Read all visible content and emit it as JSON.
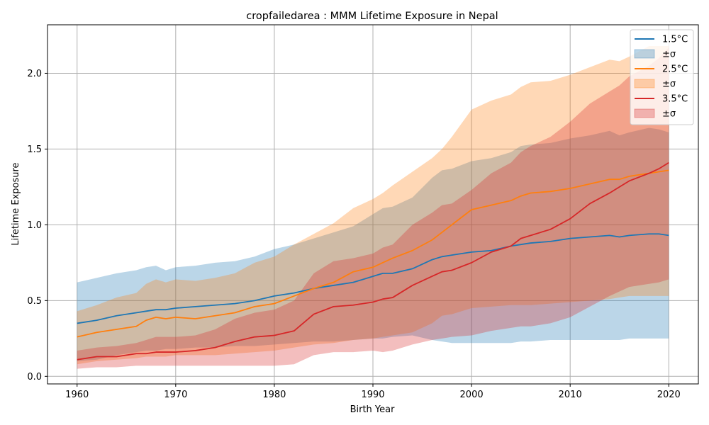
{
  "chart_data": {
    "type": "line",
    "title": "cropfailedarea : MMM Lifetime Exposure in Nepal",
    "xlabel": "Birth Year",
    "ylabel": "Lifetime Exposure",
    "xlim": [
      1957,
      2023
    ],
    "ylim": [
      -0.05,
      2.32
    ],
    "xticks": [
      1960,
      1970,
      1980,
      1990,
      2000,
      2010,
      2020
    ],
    "yticks": [
      0.0,
      0.5,
      1.0,
      1.5,
      2.0
    ],
    "xtick_labels": [
      "1960",
      "1970",
      "1980",
      "1990",
      "2000",
      "2010",
      "2020"
    ],
    "ytick_labels": [
      "0.0",
      "0.5",
      "1.0",
      "1.5",
      "2.0"
    ],
    "grid": true,
    "legend_position": "top-right",
    "x": [
      1960,
      1962,
      1964,
      1966,
      1967,
      1968,
      1969,
      1970,
      1972,
      1974,
      1976,
      1978,
      1980,
      1982,
      1984,
      1986,
      1988,
      1990,
      1991,
      1992,
      1994,
      1996,
      1997,
      1998,
      2000,
      2002,
      2004,
      2005,
      2006,
      2008,
      2010,
      2012,
      2014,
      2015,
      2016,
      2018,
      2019,
      2020
    ],
    "series": [
      {
        "name": "1.5°C",
        "band_label": "±σ",
        "color": "#1f77b4",
        "band_color": "#1f77b4",
        "mean": [
          0.35,
          0.37,
          0.4,
          0.42,
          0.43,
          0.44,
          0.44,
          0.45,
          0.46,
          0.47,
          0.48,
          0.5,
          0.53,
          0.55,
          0.58,
          0.6,
          0.62,
          0.66,
          0.68,
          0.68,
          0.71,
          0.77,
          0.79,
          0.8,
          0.82,
          0.83,
          0.86,
          0.87,
          0.88,
          0.89,
          0.91,
          0.92,
          0.93,
          0.92,
          0.93,
          0.94,
          0.94,
          0.93
        ],
        "upper": [
          0.62,
          0.65,
          0.68,
          0.7,
          0.72,
          0.73,
          0.7,
          0.72,
          0.73,
          0.75,
          0.76,
          0.79,
          0.84,
          0.87,
          0.91,
          0.95,
          0.99,
          1.07,
          1.11,
          1.12,
          1.18,
          1.31,
          1.36,
          1.37,
          1.42,
          1.44,
          1.48,
          1.52,
          1.53,
          1.54,
          1.57,
          1.59,
          1.62,
          1.59,
          1.61,
          1.64,
          1.63,
          1.61
        ],
        "lower": [
          0.1,
          0.11,
          0.14,
          0.16,
          0.17,
          0.17,
          0.18,
          0.18,
          0.19,
          0.19,
          0.2,
          0.2,
          0.21,
          0.22,
          0.23,
          0.23,
          0.24,
          0.25,
          0.25,
          0.26,
          0.27,
          0.24,
          0.23,
          0.22,
          0.22,
          0.22,
          0.22,
          0.23,
          0.23,
          0.24,
          0.24,
          0.24,
          0.24,
          0.24,
          0.25,
          0.25,
          0.25,
          0.25
        ]
      },
      {
        "name": "2.5°C",
        "band_label": "±σ",
        "color": "#ff7f0e",
        "band_color": "#ff7f0e",
        "mean": [
          0.26,
          0.29,
          0.31,
          0.33,
          0.37,
          0.39,
          0.38,
          0.39,
          0.38,
          0.4,
          0.42,
          0.46,
          0.48,
          0.53,
          0.58,
          0.62,
          0.69,
          0.72,
          0.75,
          0.78,
          0.83,
          0.9,
          0.95,
          1.0,
          1.1,
          1.13,
          1.16,
          1.19,
          1.21,
          1.22,
          1.24,
          1.27,
          1.3,
          1.3,
          1.32,
          1.34,
          1.35,
          1.36
        ],
        "upper": [
          0.43,
          0.47,
          0.52,
          0.55,
          0.61,
          0.64,
          0.62,
          0.64,
          0.63,
          0.65,
          0.68,
          0.75,
          0.79,
          0.87,
          0.94,
          1.01,
          1.11,
          1.17,
          1.21,
          1.26,
          1.35,
          1.44,
          1.5,
          1.58,
          1.76,
          1.82,
          1.86,
          1.91,
          1.94,
          1.95,
          1.99,
          2.04,
          2.09,
          2.08,
          2.11,
          2.18,
          2.18,
          2.18
        ],
        "lower": [
          0.08,
          0.1,
          0.11,
          0.12,
          0.13,
          0.13,
          0.13,
          0.14,
          0.14,
          0.14,
          0.15,
          0.16,
          0.17,
          0.19,
          0.21,
          0.22,
          0.24,
          0.25,
          0.26,
          0.27,
          0.29,
          0.35,
          0.4,
          0.41,
          0.45,
          0.46,
          0.47,
          0.47,
          0.47,
          0.48,
          0.49,
          0.5,
          0.51,
          0.52,
          0.53,
          0.53,
          0.53,
          0.53
        ]
      },
      {
        "name": "3.5°C",
        "band_label": "±σ",
        "color": "#d62728",
        "band_color": "#d62728",
        "mean": [
          0.11,
          0.13,
          0.13,
          0.15,
          0.15,
          0.16,
          0.16,
          0.16,
          0.17,
          0.19,
          0.23,
          0.26,
          0.27,
          0.3,
          0.41,
          0.46,
          0.47,
          0.49,
          0.51,
          0.52,
          0.6,
          0.66,
          0.69,
          0.7,
          0.75,
          0.82,
          0.86,
          0.91,
          0.93,
          0.97,
          1.04,
          1.14,
          1.21,
          1.25,
          1.29,
          1.34,
          1.37,
          1.41
        ],
        "upper": [
          0.17,
          0.19,
          0.2,
          0.22,
          0.24,
          0.26,
          0.26,
          0.26,
          0.27,
          0.31,
          0.38,
          0.42,
          0.44,
          0.5,
          0.68,
          0.76,
          0.78,
          0.81,
          0.85,
          0.87,
          1.0,
          1.08,
          1.13,
          1.14,
          1.23,
          1.34,
          1.41,
          1.48,
          1.52,
          1.58,
          1.68,
          1.8,
          1.88,
          1.92,
          1.98,
          2.05,
          2.1,
          2.17
        ],
        "lower": [
          0.05,
          0.06,
          0.06,
          0.07,
          0.07,
          0.07,
          0.07,
          0.07,
          0.07,
          0.07,
          0.07,
          0.07,
          0.07,
          0.08,
          0.14,
          0.16,
          0.16,
          0.17,
          0.16,
          0.17,
          0.21,
          0.24,
          0.25,
          0.26,
          0.27,
          0.3,
          0.32,
          0.33,
          0.33,
          0.35,
          0.39,
          0.46,
          0.53,
          0.56,
          0.59,
          0.61,
          0.62,
          0.64
        ]
      }
    ]
  }
}
